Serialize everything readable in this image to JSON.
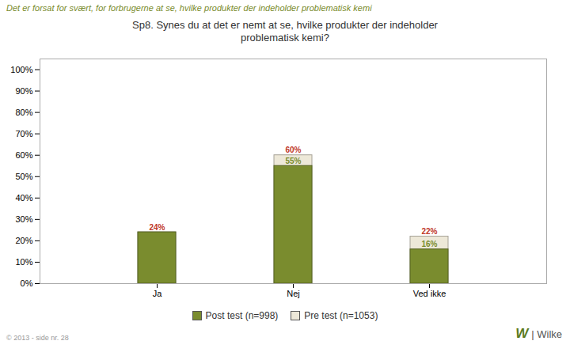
{
  "chart_data": {
    "type": "bar",
    "title": "Sp8. Synes du at det er nemt at se, hvilke produkter der indeholder\nproblematisk kemi?",
    "subtitle": "Det er forsat for svært, for forbrugerne at se, hvilke produkter der indeholder problematisk kemi",
    "caption": "© 2013 - side nr. 28",
    "annotations": [
      "W",
      "| Wilke"
    ],
    "categories": [
      "Ja",
      "Nej",
      "Ved ikke"
    ],
    "series": [
      {
        "name": "Post test (n=998)",
        "color": "#7a8c2e",
        "values": [
          0.24,
          0.55,
          0.16
        ],
        "value_labels": [
          "24%",
          "55%",
          "16%"
        ]
      },
      {
        "name": "Pre test (n=1053)",
        "color": "#ede8d8",
        "values": [
          0.24,
          0.6,
          0.22
        ],
        "value_labels": [
          "24%",
          "60%",
          "22%"
        ]
      }
    ],
    "ylim": [
      0,
      1.05
    ],
    "yticks": [
      {
        "value": 0.0,
        "label": "0%"
      },
      {
        "value": 0.1,
        "label": "10%"
      },
      {
        "value": 0.2,
        "label": "20%"
      },
      {
        "value": 0.3,
        "label": "30%"
      },
      {
        "value": 0.4,
        "label": "40%"
      },
      {
        "value": 0.5,
        "label": "50%"
      },
      {
        "value": 0.6,
        "label": "60%"
      },
      {
        "value": 0.7,
        "label": "70%"
      },
      {
        "value": 0.8,
        "label": "80%"
      },
      {
        "value": 0.9,
        "label": "90%"
      },
      {
        "value": 1.0,
        "label": "100%"
      }
    ],
    "grid": false,
    "legend": "bottom",
    "data_labels": true
  }
}
